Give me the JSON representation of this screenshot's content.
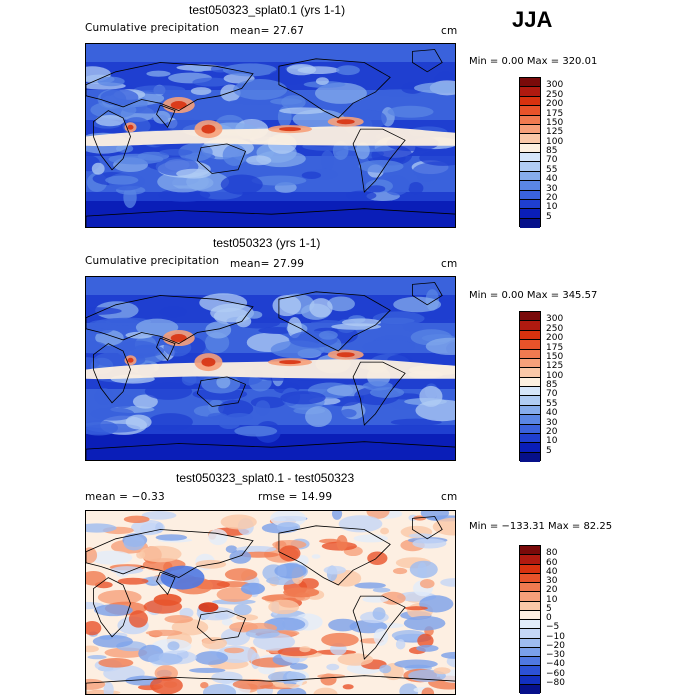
{
  "season": "JJA",
  "panels": [
    {
      "title": "test050323_splat0.1 (yrs 1-1)",
      "left_text": "Cumulative precipitation",
      "mean_text": "mean=  27.67",
      "right_text": "cm",
      "min_max_text": "Min =    0.00 Max = 320.01",
      "kind": "precip",
      "colorbar": {
        "levels": [
          "300",
          "250",
          "200",
          "175",
          "150",
          "125",
          "100",
          "85",
          "70",
          "55",
          "40",
          "30",
          "20",
          "10",
          "5"
        ],
        "colors": [
          "#7a0a0a",
          "#b01a10",
          "#d8320f",
          "#e8532a",
          "#f07a50",
          "#f6a07a",
          "#fac8a8",
          "#fdf0e0",
          "#d6e6fa",
          "#b0ccf4",
          "#86acec",
          "#5a86e4",
          "#3a62dc",
          "#1f3fd0",
          "#0a1eb8",
          "#06108a"
        ]
      }
    },
    {
      "title": "test050323 (yrs 1-1)",
      "left_text": "Cumulative precipitation",
      "mean_text": "mean=  27.99",
      "right_text": "cm",
      "min_max_text": "Min =    0.00 Max = 345.57",
      "kind": "precip",
      "colorbar": {
        "levels": [
          "300",
          "250",
          "200",
          "175",
          "150",
          "125",
          "100",
          "85",
          "70",
          "55",
          "40",
          "30",
          "20",
          "10",
          "5"
        ],
        "colors": [
          "#7a0a0a",
          "#b01a10",
          "#d8320f",
          "#e8532a",
          "#f07a50",
          "#f6a07a",
          "#fac8a8",
          "#fdf0e0",
          "#d6e6fa",
          "#b0ccf4",
          "#86acec",
          "#5a86e4",
          "#3a62dc",
          "#1f3fd0",
          "#0a1eb8",
          "#06108a"
        ]
      }
    },
    {
      "title": "test050323_splat0.1 - test050323",
      "left_text": "mean =   −0.33",
      "mean_text": "rmse =   14.99",
      "right_text": "cm",
      "min_max_text": "Min = −133.31  Max =   82.25",
      "kind": "diff",
      "colorbar": {
        "levels": [
          "80",
          "60",
          "40",
          "30",
          "20",
          "10",
          "5",
          "0",
          "−5",
          "−10",
          "−20",
          "−30",
          "−40",
          "−60",
          "−80"
        ],
        "colors": [
          "#7a0a0a",
          "#b01a10",
          "#d8320f",
          "#e8532a",
          "#f07a50",
          "#f6a07a",
          "#fac8a8",
          "#fdefe2",
          "#e2ecfa",
          "#c4d6f6",
          "#9ebcf0",
          "#7aa0ea",
          "#4f78e2",
          "#2c52d6",
          "#1230c0",
          "#06108a"
        ]
      }
    }
  ]
}
